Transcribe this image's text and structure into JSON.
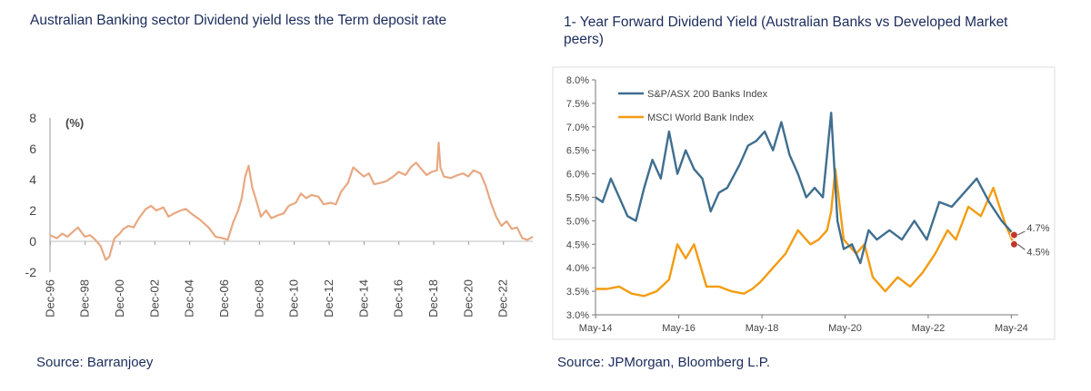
{
  "left_chart": {
    "title": "Australian Banking sector Dividend yield less the Term deposit rate",
    "source": "Source: Barranjoey"
  },
  "right_chart": {
    "title": "1- Year Forward Dividend Yield (Australian Banks vs Developed Market peers)",
    "source": "Source: JPMorgan, Bloomberg L.P."
  },
  "colors": {
    "text": "#1b2c5c",
    "left_line": "#e8a882",
    "asx": "#3f6e8f",
    "msci": "#f39c12",
    "marker": "#c0392b"
  },
  "chart_data": [
    {
      "type": "line",
      "title": "Australian Banking sector Dividend yield less the Term deposit rate",
      "ylabel": "(%)",
      "ylim": [
        -2,
        8
      ],
      "yticks": [
        "8",
        "6",
        "4",
        "2",
        "0",
        "-2"
      ],
      "xlim": [
        1996.9,
        2024.6
      ],
      "xticks": [
        "Dec-96",
        "Dec-98",
        "Dec-00",
        "Dec-02",
        "Dec-04",
        "Dec-06",
        "Dec-08",
        "Dec-10",
        "Dec-12",
        "Dec-14",
        "Dec-16",
        "Dec-18",
        "Dec-20",
        "Dec-22"
      ],
      "series": [
        {
          "name": "Dividend yield less term deposit rate",
          "x": [
            1996.9,
            1997.3,
            1997.6,
            1997.9,
            1998.2,
            1998.5,
            1998.9,
            1999.2,
            1999.5,
            1999.8,
            2000.1,
            2000.3,
            2000.6,
            2000.9,
            2001.1,
            2001.4,
            2001.7,
            2002.0,
            2002.4,
            2002.7,
            2003.0,
            2003.4,
            2003.7,
            2004.0,
            2004.4,
            2004.7,
            2005.0,
            2005.5,
            2006.0,
            2006.4,
            2006.8,
            2007.1,
            2007.4,
            2007.7,
            2007.9,
            2008.1,
            2008.3,
            2008.5,
            2008.8,
            2009.0,
            2009.3,
            2009.6,
            2010.0,
            2010.3,
            2010.6,
            2011.0,
            2011.3,
            2011.6,
            2011.9,
            2012.3,
            2012.6,
            2013.0,
            2013.3,
            2013.6,
            2014.0,
            2014.3,
            2014.6,
            2014.9,
            2015.2,
            2015.5,
            2015.9,
            2016.2,
            2016.6,
            2016.9,
            2017.3,
            2017.6,
            2017.9,
            2018.2,
            2018.5,
            2018.8,
            2019.1,
            2019.2,
            2019.3,
            2019.5,
            2019.9,
            2020.3,
            2020.6,
            2020.9,
            2021.2,
            2021.6,
            2021.9,
            2022.2,
            2022.5,
            2022.8,
            2023.1,
            2023.4,
            2023.7,
            2024.0,
            2024.3,
            2024.6
          ],
          "values": [
            0.4,
            0.2,
            0.5,
            0.3,
            0.6,
            0.9,
            0.3,
            0.4,
            0.1,
            -0.3,
            -1.2,
            -1.0,
            0.2,
            0.5,
            0.8,
            1.0,
            0.9,
            1.5,
            2.1,
            2.3,
            2.0,
            2.2,
            1.6,
            1.8,
            2.0,
            2.1,
            1.8,
            1.4,
            0.9,
            0.3,
            0.2,
            0.1,
            1.2,
            2.0,
            2.8,
            4.2,
            4.9,
            3.5,
            2.4,
            1.6,
            2.0,
            1.5,
            1.7,
            1.8,
            2.3,
            2.5,
            3.1,
            2.8,
            3.0,
            2.9,
            2.4,
            2.5,
            2.4,
            3.2,
            3.8,
            4.8,
            4.5,
            4.2,
            4.4,
            3.7,
            3.8,
            3.9,
            4.2,
            4.5,
            4.3,
            4.8,
            5.1,
            4.7,
            4.3,
            4.5,
            4.6,
            6.4,
            4.8,
            4.2,
            4.1,
            4.3,
            4.4,
            4.2,
            4.6,
            4.4,
            3.6,
            2.5,
            1.6,
            1.0,
            1.3,
            0.8,
            0.9,
            0.2,
            0.1,
            0.3
          ]
        }
      ]
    },
    {
      "type": "line",
      "title": "1- Year Forward Dividend Yield (Australian Banks vs Developed Market peers)",
      "ylim": [
        3.0,
        8.0
      ],
      "yticks": [
        "8.0%",
        "7.5%",
        "7.0%",
        "6.5%",
        "6.0%",
        "5.5%",
        "5.0%",
        "4.5%",
        "4.0%",
        "3.5%",
        "3.0%"
      ],
      "xlim": [
        2014.33,
        2024.5
      ],
      "xticks": [
        "May-14",
        "May-16",
        "May-18",
        "May-20",
        "May-22",
        "May-24"
      ],
      "legend": [
        "S&P/ASX 200 Banks Index",
        "MSCI World Bank Index"
      ],
      "annotations": [
        "4.7%",
        "4.5%"
      ],
      "series": [
        {
          "name": "S&P/ASX 200 Banks Index",
          "x": [
            2014.33,
            2014.5,
            2014.7,
            2014.9,
            2015.1,
            2015.3,
            2015.5,
            2015.7,
            2015.9,
            2016.1,
            2016.3,
            2016.5,
            2016.7,
            2016.9,
            2017.1,
            2017.3,
            2017.5,
            2017.8,
            2018.0,
            2018.2,
            2018.4,
            2018.6,
            2018.8,
            2019.0,
            2019.2,
            2019.4,
            2019.6,
            2019.8,
            2020.0,
            2020.15,
            2020.3,
            2020.5,
            2020.7,
            2020.9,
            2021.1,
            2021.4,
            2021.7,
            2022.0,
            2022.3,
            2022.6,
            2022.9,
            2023.2,
            2023.5,
            2023.8,
            2024.1,
            2024.4
          ],
          "values": [
            5.5,
            5.4,
            5.9,
            5.5,
            5.1,
            5.0,
            5.7,
            6.3,
            5.9,
            6.9,
            6.0,
            6.5,
            6.1,
            5.9,
            5.2,
            5.6,
            5.7,
            6.2,
            6.6,
            6.7,
            6.9,
            6.5,
            7.1,
            6.4,
            6.0,
            5.5,
            5.7,
            5.5,
            7.3,
            5.0,
            4.4,
            4.5,
            4.1,
            4.8,
            4.6,
            4.8,
            4.6,
            5.0,
            4.6,
            5.4,
            5.3,
            5.6,
            5.9,
            5.4,
            5.0,
            4.7
          ]
        },
        {
          "name": "MSCI World Bank Index",
          "x": [
            2014.33,
            2014.6,
            2014.9,
            2015.2,
            2015.5,
            2015.8,
            2016.1,
            2016.3,
            2016.5,
            2016.7,
            2017.0,
            2017.3,
            2017.6,
            2017.9,
            2018.1,
            2018.3,
            2018.6,
            2018.9,
            2019.2,
            2019.5,
            2019.7,
            2019.9,
            2020.0,
            2020.1,
            2020.3,
            2020.6,
            2020.8,
            2021.0,
            2021.3,
            2021.6,
            2021.9,
            2022.2,
            2022.5,
            2022.8,
            2023.0,
            2023.3,
            2023.6,
            2023.9,
            2024.2,
            2024.4
          ],
          "values": [
            3.55,
            3.55,
            3.6,
            3.45,
            3.4,
            3.5,
            3.75,
            4.5,
            4.2,
            4.5,
            3.6,
            3.6,
            3.5,
            3.45,
            3.55,
            3.7,
            4.0,
            4.3,
            4.8,
            4.5,
            4.6,
            4.8,
            5.2,
            6.1,
            4.6,
            4.3,
            4.5,
            3.8,
            3.5,
            3.8,
            3.6,
            3.9,
            4.3,
            4.8,
            4.6,
            5.3,
            5.1,
            5.7,
            4.9,
            4.5
          ]
        }
      ]
    }
  ]
}
